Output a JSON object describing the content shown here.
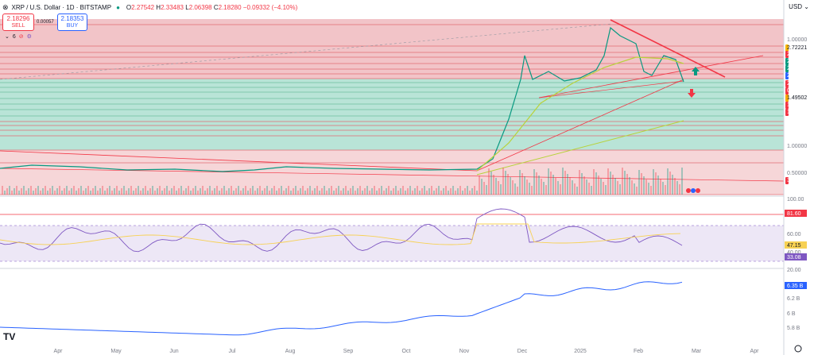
{
  "header": {
    "symbol": "XRP / U.S. Dollar · 1D · BITSTAMP",
    "open_label": "O",
    "open": "2.27542",
    "high_label": "H",
    "high": "2.33483",
    "low_label": "L",
    "low": "2.06398",
    "close_label": "C",
    "close": "2.18280",
    "change": "−0.09332 (−4.10%)"
  },
  "trade": {
    "sell_price": "2.18296",
    "sell_label": "SELL",
    "spread": "0.00057",
    "buy_price": "2.18353",
    "buy_label": "BUY"
  },
  "indicator_count": "6",
  "currency": "USD",
  "colors": {
    "up": "#089981",
    "down": "#f23645",
    "rsi": "#7e57c2",
    "line": "#2962ff",
    "trend": "#f23645"
  },
  "price_labels": [
    {
      "text": "2.72221",
      "bg": "#f7b500"
    },
    {
      "text": "2.21396",
      "bg": "#f23645"
    },
    {
      "text": "2.19387",
      "bg": "#089981"
    },
    {
      "text": "2.19387",
      "bg": "#089981"
    },
    {
      "text": "2.19387",
      "bg": "#2962ff"
    },
    {
      "text": "2.18280",
      "bg": "#f23645"
    },
    {
      "text": "04:36:17",
      "bg": "#f23645"
    },
    {
      "text": "1.49502",
      "bg": "#f7a600"
    },
    {
      "text": "1.41509",
      "bg": "#f23645"
    },
    {
      "text": "1.35384",
      "bg": "#f23645"
    },
    {
      "text": "30.81 M",
      "bg": "#f23645"
    }
  ],
  "chart_data": [
    {
      "type": "candlestick",
      "x_ticks": [
        "Apr",
        "May",
        "Jun",
        "Jul",
        "Aug",
        "Sep",
        "Oct",
        "Nov",
        "Dec",
        "2025",
        "Feb",
        "Mar",
        "Apr"
      ],
      "y_ticks": [
        "1.00000",
        "1.00000",
        "0.50000"
      ],
      "series_key_points": {
        "x": [
          "Mar",
          "Jul",
          "Nov",
          "Dec",
          "2025",
          "Feb",
          "Mar"
        ],
        "close": [
          0.62,
          0.48,
          0.55,
          2.3,
          2.4,
          2.7,
          2.18
        ]
      },
      "volume_label": "30.81 M"
    },
    {
      "type": "line",
      "name": "RSI",
      "y_ticks": [
        "100.00",
        "60.00",
        "40.00",
        "20.00"
      ],
      "levels": [
        "81.60",
        "47.15",
        "33.08"
      ]
    },
    {
      "type": "line",
      "y_ticks": [
        "6.2 B",
        "6 B",
        "5.8 B"
      ],
      "last_value": "6.35 B"
    }
  ]
}
